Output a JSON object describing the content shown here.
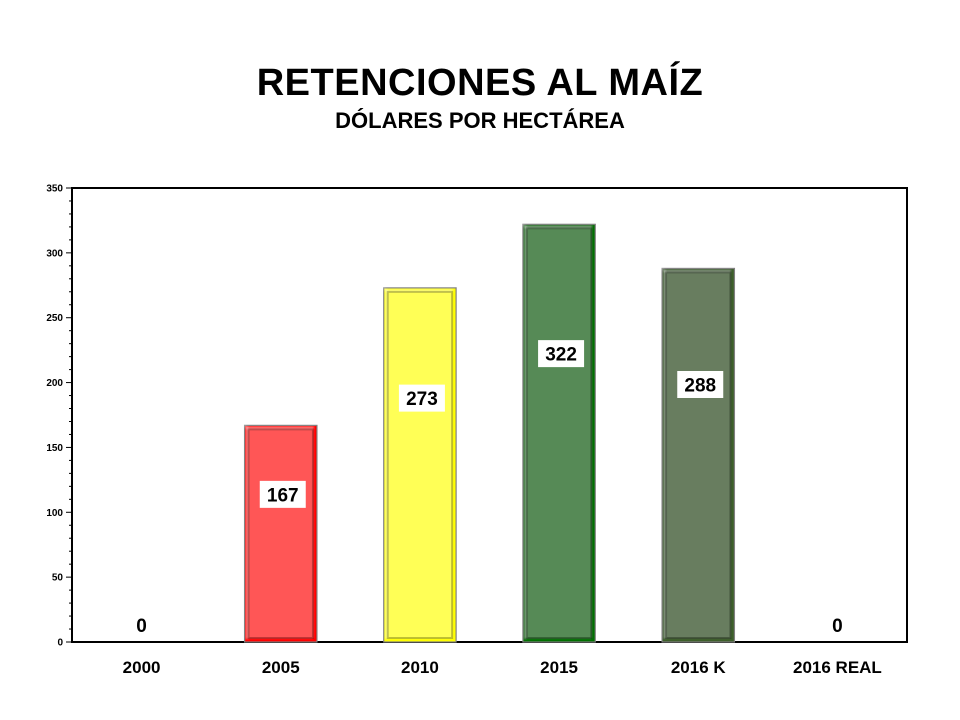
{
  "chart_data": {
    "type": "bar",
    "title": "RETENCIONES AL MAÍZ",
    "subtitle": "DÓLARES POR HECTÁREA",
    "categories": [
      "2000",
      "2005",
      "2010",
      "2015",
      "2016 K",
      "2016 REAL"
    ],
    "values": [
      0,
      167,
      273,
      322,
      288,
      0
    ],
    "data_labels": [
      "0",
      "167",
      "273",
      "322",
      "288",
      "0"
    ],
    "colors": [
      "#ff0000",
      "#ff0000",
      "#ffff00",
      "#007000",
      "#3d5e2a",
      "#3d5e2a"
    ],
    "ylim": [
      0,
      350
    ],
    "yticks": [
      0,
      50,
      100,
      150,
      200,
      250,
      300,
      350
    ],
    "xlabel": "",
    "ylabel": "",
    "grid": false,
    "legend": "none"
  }
}
